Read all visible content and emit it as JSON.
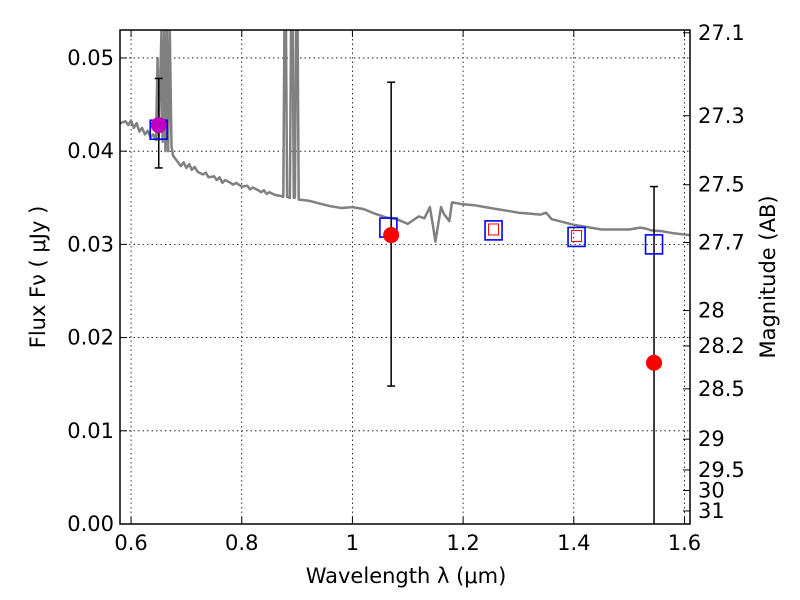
{
  "chart_data": {
    "type": "scatter",
    "xlabel": "Wavelength  λ (μm)",
    "ylabel": "Flux  Fν  ( μJy )",
    "y2label": "Magnitude (AB)",
    "xlim": [
      0.58,
      1.61
    ],
    "ylim": [
      0.0,
      0.053
    ],
    "grid": true,
    "x_ticks": [
      0.6,
      0.8,
      1.0,
      1.2,
      1.4,
      1.6
    ],
    "x_tick_labels": [
      "0.6",
      "0.8",
      "1",
      "1.2",
      "1.4",
      "1.6"
    ],
    "y_ticks": [
      0.0,
      0.01,
      0.02,
      0.03,
      0.04,
      0.05
    ],
    "y_tick_labels": [
      "0.00",
      "0.01",
      "0.02",
      "0.03",
      "0.04",
      "0.05"
    ],
    "y2_ticks": [
      {
        "label": "27.1",
        "flux": 0.0527
      },
      {
        "label": "27.3",
        "flux": 0.0438
      },
      {
        "label": "27.5",
        "flux": 0.0364
      },
      {
        "label": "27.7",
        "flux": 0.0302
      },
      {
        "label": "28",
        "flux": 0.0229
      },
      {
        "label": "28.2",
        "flux": 0.0191
      },
      {
        "label": "28.5",
        "flux": 0.0145
      },
      {
        "label": "29",
        "flux": 0.0091
      },
      {
        "label": "29.5",
        "flux": 0.0058
      },
      {
        "label": "30",
        "flux": 0.0036
      },
      {
        "label": "31",
        "flux": 0.0014
      }
    ],
    "series": [
      {
        "kind": "model_sed",
        "color": "#808080",
        "points": [
          [
            0.58,
            0.043
          ],
          [
            0.59,
            0.0432
          ],
          [
            0.595,
            0.0428
          ],
          [
            0.6,
            0.0433
          ],
          [
            0.605,
            0.0425
          ],
          [
            0.61,
            0.043
          ],
          [
            0.615,
            0.0421
          ],
          [
            0.62,
            0.0425
          ],
          [
            0.625,
            0.0418
          ],
          [
            0.63,
            0.0422
          ],
          [
            0.635,
            0.0415
          ],
          [
            0.64,
            0.0418
          ],
          [
            0.645,
            0.0412
          ],
          [
            0.648,
            0.05
          ],
          [
            0.65,
            0.0412
          ],
          [
            0.655,
            0.053
          ],
          [
            0.657,
            0.041
          ],
          [
            0.66,
            0.053
          ],
          [
            0.662,
            0.04
          ],
          [
            0.665,
            0.053
          ],
          [
            0.667,
            0.04
          ],
          [
            0.67,
            0.053
          ],
          [
            0.673,
            0.0405
          ],
          [
            0.676,
            0.0395
          ],
          [
            0.68,
            0.0392
          ],
          [
            0.69,
            0.0384
          ],
          [
            0.695,
            0.0388
          ],
          [
            0.7,
            0.0382
          ],
          [
            0.705,
            0.0386
          ],
          [
            0.71,
            0.038
          ],
          [
            0.715,
            0.0383
          ],
          [
            0.72,
            0.0378
          ],
          [
            0.73,
            0.0375
          ],
          [
            0.735,
            0.0377
          ],
          [
            0.74,
            0.0372
          ],
          [
            0.75,
            0.0373
          ],
          [
            0.755,
            0.0369
          ],
          [
            0.76,
            0.0372
          ],
          [
            0.765,
            0.0366
          ],
          [
            0.77,
            0.0369
          ],
          [
            0.78,
            0.0366
          ],
          [
            0.785,
            0.0364
          ],
          [
            0.79,
            0.0366
          ],
          [
            0.8,
            0.0362
          ],
          [
            0.81,
            0.0363
          ],
          [
            0.815,
            0.0359
          ],
          [
            0.82,
            0.0361
          ],
          [
            0.83,
            0.0358
          ],
          [
            0.835,
            0.0356
          ],
          [
            0.84,
            0.0358
          ],
          [
            0.845,
            0.0354
          ],
          [
            0.85,
            0.0356
          ],
          [
            0.86,
            0.0353
          ],
          [
            0.87,
            0.0352
          ],
          [
            0.875,
            0.0351
          ],
          [
            0.877,
            0.053
          ],
          [
            0.88,
            0.053
          ],
          [
            0.882,
            0.0351
          ],
          [
            0.887,
            0.035
          ],
          [
            0.889,
            0.053
          ],
          [
            0.892,
            0.053
          ],
          [
            0.894,
            0.035
          ],
          [
            0.896,
            0.035
          ],
          [
            0.898,
            0.053
          ],
          [
            0.901,
            0.053
          ],
          [
            0.903,
            0.0348
          ],
          [
            0.92,
            0.0347
          ],
          [
            0.94,
            0.0344
          ],
          [
            0.96,
            0.0341
          ],
          [
            0.98,
            0.0339
          ],
          [
            1.0,
            0.034
          ],
          [
            1.02,
            0.0338
          ],
          [
            1.04,
            0.0333
          ],
          [
            1.06,
            0.0329
          ],
          [
            1.08,
            0.0327
          ],
          [
            1.1,
            0.0322
          ],
          [
            1.12,
            0.033
          ],
          [
            1.13,
            0.0328
          ],
          [
            1.14,
            0.034
          ],
          [
            1.145,
            0.0322
          ],
          [
            1.15,
            0.0303
          ],
          [
            1.16,
            0.034
          ],
          [
            1.165,
            0.0333
          ],
          [
            1.175,
            0.0325
          ],
          [
            1.18,
            0.0345
          ],
          [
            1.2,
            0.0343
          ],
          [
            1.22,
            0.0342
          ],
          [
            1.24,
            0.034
          ],
          [
            1.26,
            0.0338
          ],
          [
            1.28,
            0.0336
          ],
          [
            1.3,
            0.0334
          ],
          [
            1.32,
            0.0333
          ],
          [
            1.34,
            0.0332
          ],
          [
            1.35,
            0.0334
          ],
          [
            1.36,
            0.0327
          ],
          [
            1.4,
            0.0321
          ],
          [
            1.45,
            0.0316
          ],
          [
            1.5,
            0.0316
          ],
          [
            1.52,
            0.0318
          ],
          [
            1.53,
            0.0317
          ],
          [
            1.54,
            0.0315
          ],
          [
            1.56,
            0.0314
          ],
          [
            1.58,
            0.0312
          ],
          [
            1.61,
            0.031
          ]
        ]
      },
      {
        "kind": "model_photometry",
        "marker": "large_open_square",
        "color": "#0000ff",
        "points": [
          [
            0.65,
            0.0423
          ],
          [
            1.065,
            0.0318
          ],
          [
            1.255,
            0.0315
          ],
          [
            1.405,
            0.0308
          ],
          [
            1.545,
            0.03
          ]
        ]
      },
      {
        "kind": "small_open_square",
        "marker": "small_open_square",
        "color": "#ff0000",
        "points": [
          [
            1.255,
            0.0316
          ],
          [
            1.405,
            0.0309
          ]
        ]
      },
      {
        "kind": "observed",
        "marker": "filled_circle",
        "color": "#ff0000",
        "points": [
          {
            "x": 1.07,
            "y": 0.031,
            "yerr_low": 0.0148,
            "yerr_high": 0.0474
          },
          {
            "x": 1.545,
            "y": 0.0173,
            "yerr_low": 0.0,
            "yerr_high": 0.0362
          }
        ]
      },
      {
        "kind": "observed_highlight",
        "marker": "filled_circle",
        "color": "#bf00bf",
        "points": [
          {
            "x": 0.65,
            "y": 0.0428,
            "yerr_low": 0.0382,
            "yerr_high": 0.0478
          }
        ]
      }
    ]
  }
}
